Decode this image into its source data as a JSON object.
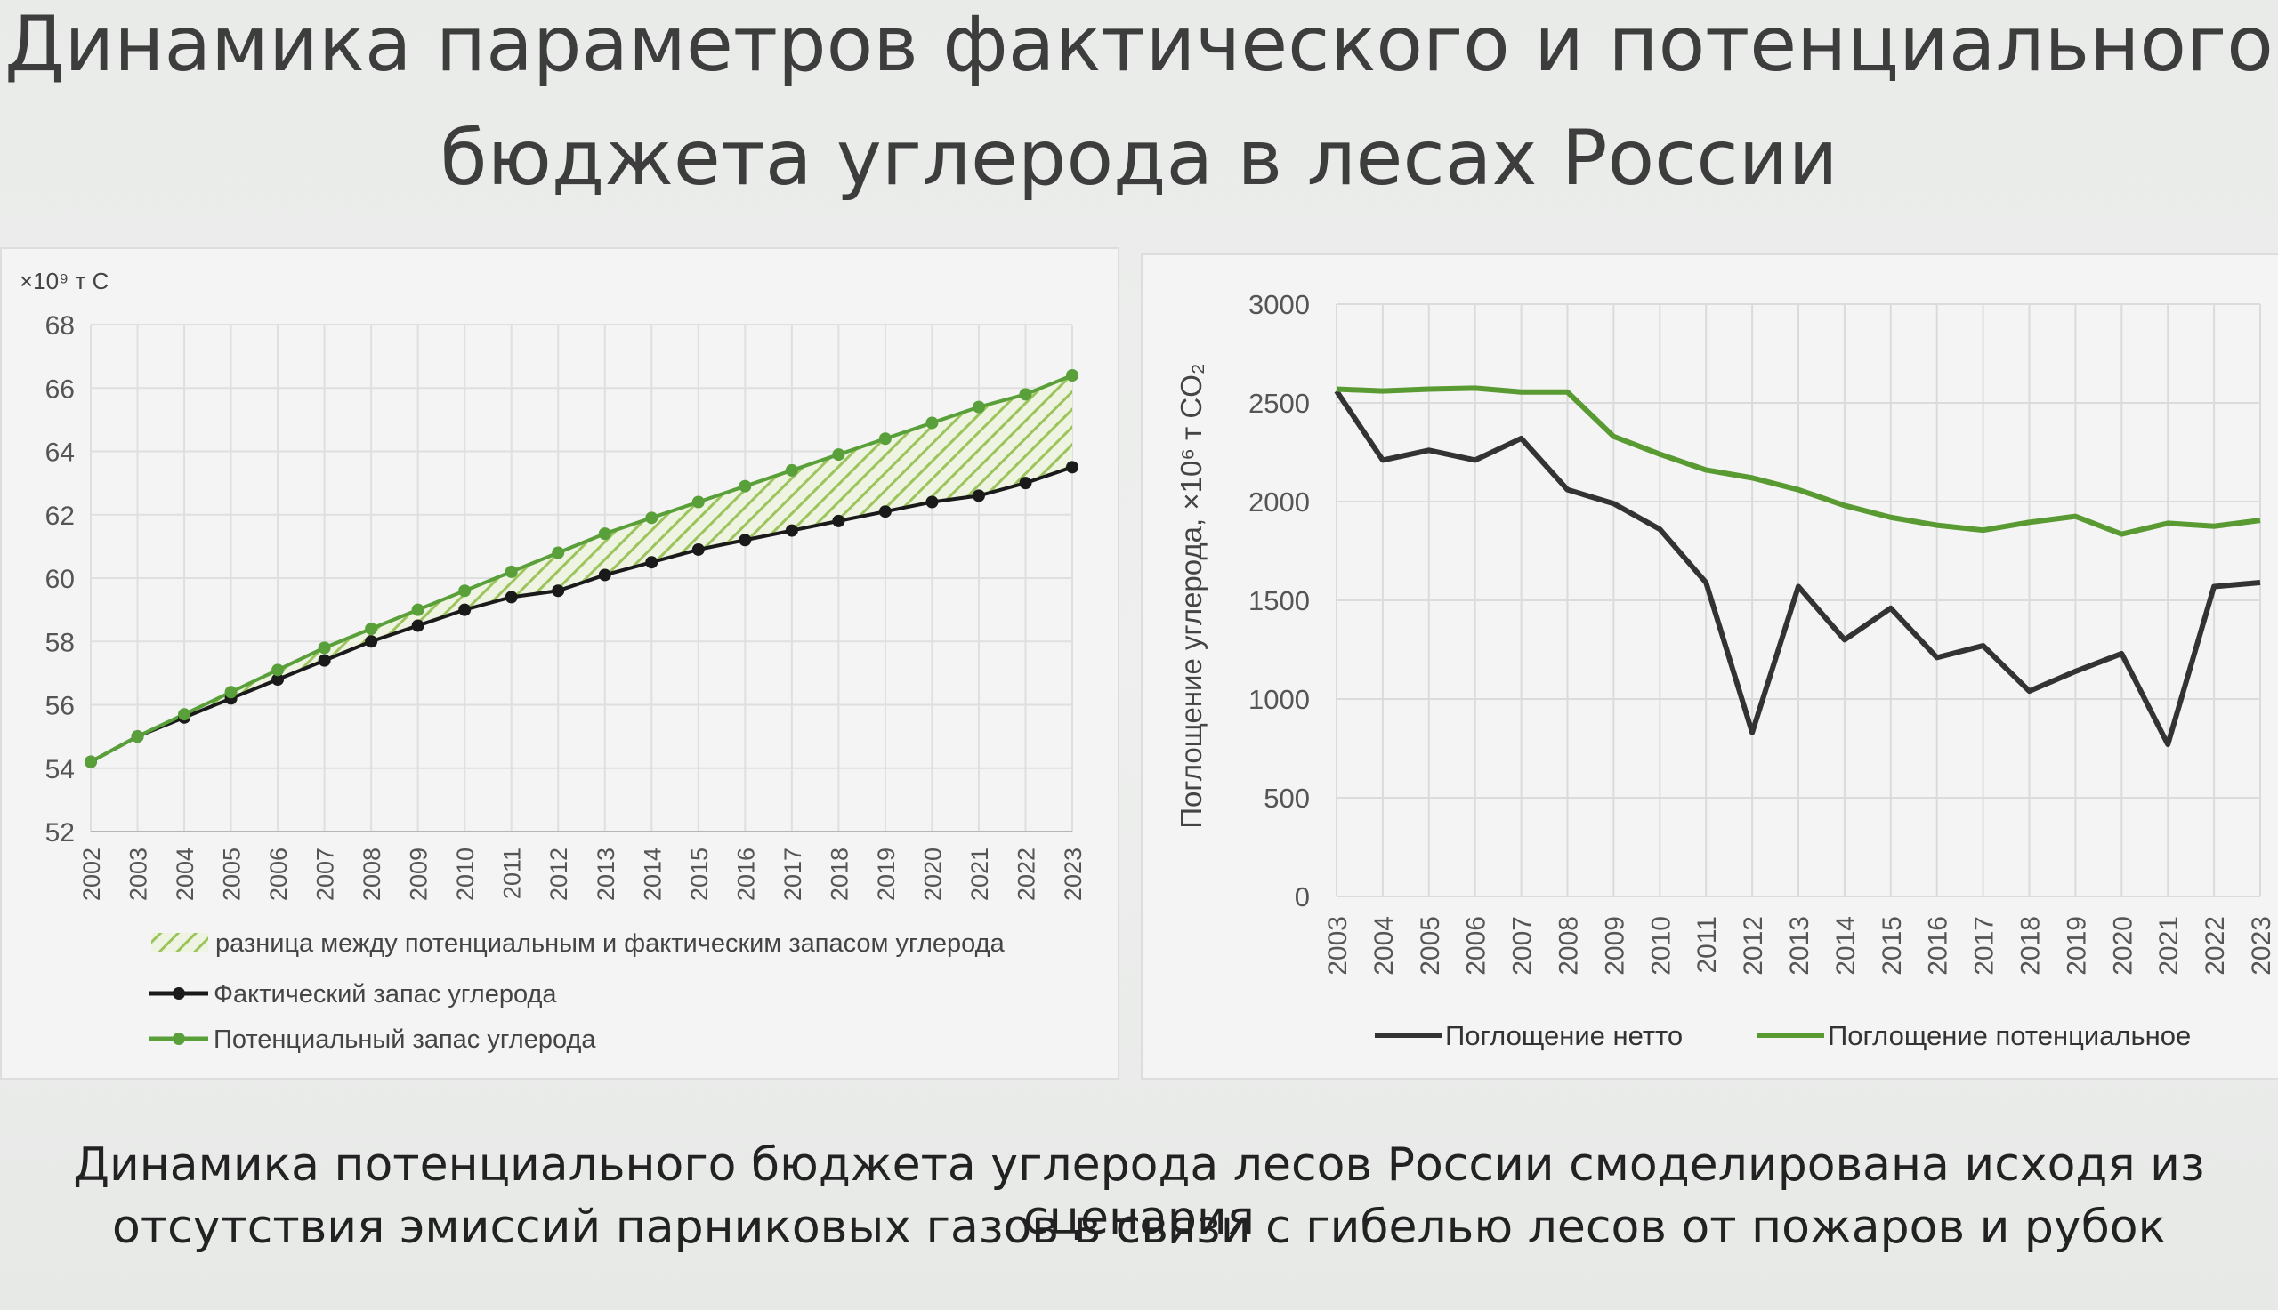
{
  "title": {
    "line1": "Динамика параметров фактического и потенциального",
    "line2": "бюджета углерода в лесах России"
  },
  "caption": {
    "line1": "Динамика потенциального бюджета углерода лесов России смоделирована исходя из сценария",
    "line2": "отсутствия эмиссий парниковых газов в связи с гибелью лесов от пожаров и рубок"
  },
  "chart_data": [
    {
      "type": "line",
      "unit_label": "×10⁹ т С",
      "ylim": [
        52,
        68
      ],
      "yticks": [
        52,
        54,
        56,
        58,
        60,
        62,
        64,
        66,
        68
      ],
      "x": [
        "2002",
        "2003",
        "2004",
        "2005",
        "2006",
        "2007",
        "2008",
        "2009",
        "2010",
        "2011",
        "2012",
        "2013",
        "2014",
        "2015",
        "2016",
        "2017",
        "2018",
        "2019",
        "2020",
        "2021",
        "2022",
        "2023"
      ],
      "fill_between_label": "разница между потенциальным и фактическим запасом углерода",
      "series": [
        {
          "name": "Фактический запас углерода",
          "color": "#1a1a1a",
          "values": [
            54.2,
            55.0,
            55.6,
            56.2,
            56.8,
            57.4,
            58.0,
            58.5,
            59.0,
            59.4,
            59.6,
            60.1,
            60.5,
            60.9,
            61.2,
            61.5,
            61.8,
            62.1,
            62.4,
            62.6,
            63.0,
            63.5
          ]
        },
        {
          "name": "Потенциальный запас углерода",
          "color": "#5aa03a",
          "values": [
            54.2,
            55.0,
            55.7,
            56.4,
            57.1,
            57.8,
            58.4,
            59.0,
            59.6,
            60.2,
            60.8,
            61.4,
            61.9,
            62.4,
            62.9,
            63.4,
            63.9,
            64.4,
            64.9,
            65.4,
            65.8,
            66.4
          ]
        }
      ]
    },
    {
      "type": "line",
      "ylabel": "Поглощение углерода, ×10⁶ т CO₂",
      "ylim": [
        0,
        3000
      ],
      "yticks": [
        0,
        500,
        1000,
        1500,
        2000,
        2500,
        3000
      ],
      "x": [
        "2003",
        "2004",
        "2005",
        "2006",
        "2007",
        "2008",
        "2009",
        "2010",
        "2011",
        "2012",
        "2013",
        "2014",
        "2015",
        "2016",
        "2017",
        "2018",
        "2019",
        "2020",
        "2021",
        "2022",
        "2023"
      ],
      "series": [
        {
          "name": "Поглощение нетто",
          "color": "#333333",
          "values": [
            2560,
            2210,
            2260,
            2210,
            2320,
            2060,
            1990,
            1860,
            1590,
            830,
            1570,
            1300,
            1460,
            1210,
            1270,
            1040,
            1140,
            1230,
            770,
            1570,
            1590
          ]
        },
        {
          "name": "Поглощение потенциальное",
          "color": "#5a9a32",
          "values": [
            2570,
            2560,
            2570,
            2575,
            2555,
            2555,
            2330,
            2240,
            2160,
            2120,
            2060,
            1980,
            1920,
            1880,
            1855,
            1895,
            1925,
            1835,
            1890,
            1875,
            1905
          ]
        }
      ]
    }
  ]
}
